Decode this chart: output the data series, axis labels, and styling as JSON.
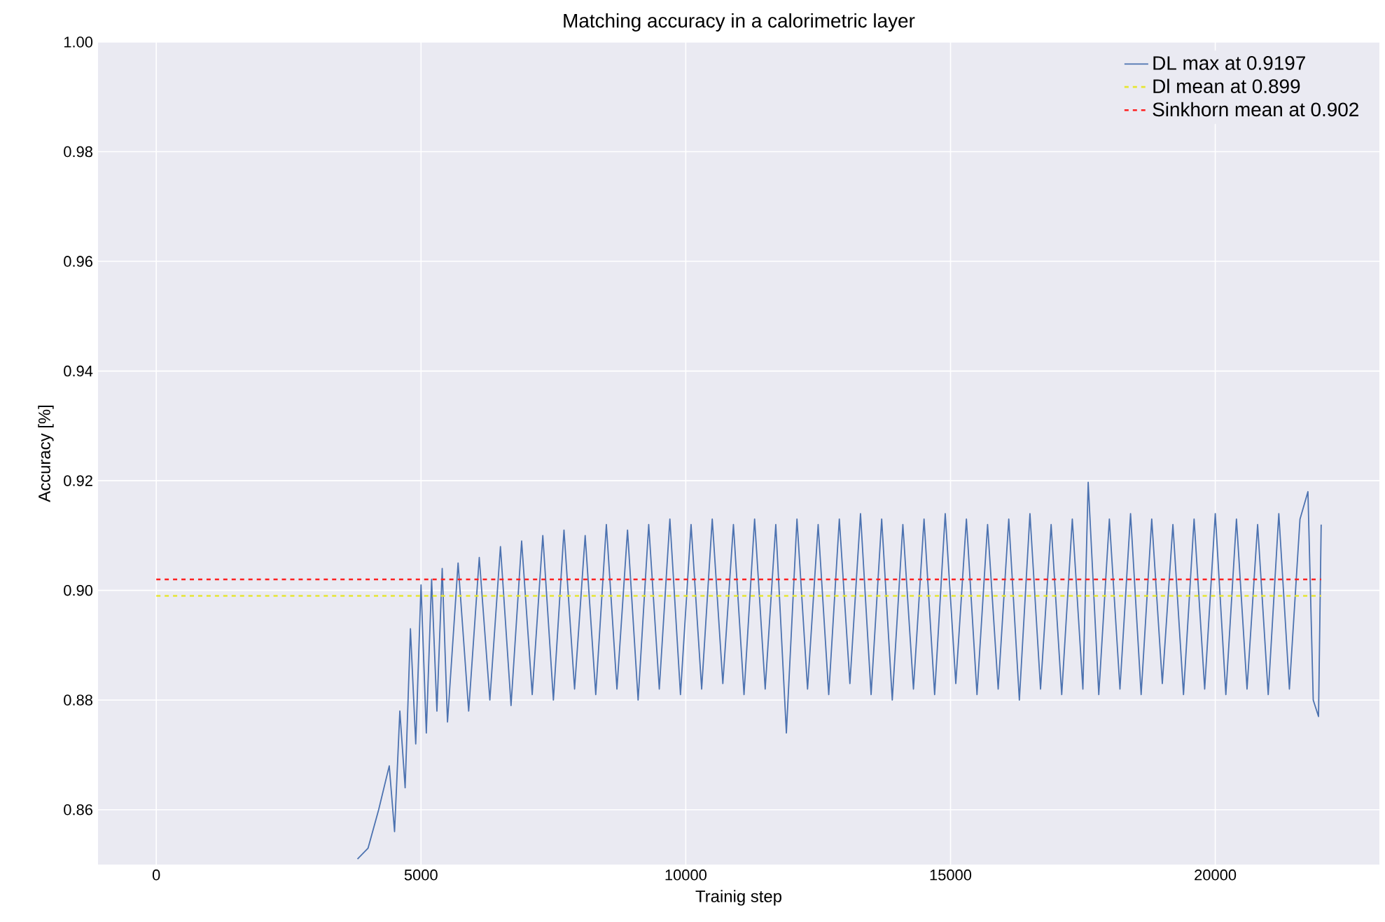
{
  "chart_data": {
    "type": "line",
    "title": "Matching accuracy in a calorimetric layer",
    "xlabel": "Trainig step",
    "ylabel": "Accuracy [%]",
    "xlim": [
      -1100,
      23100
    ],
    "ylim": [
      0.85,
      1.0
    ],
    "xticks": [
      0,
      5000,
      10000,
      15000,
      20000
    ],
    "yticks": [
      0.86,
      0.88,
      {
        "value": 0.9,
        "label": "0.90"
      },
      0.92,
      0.94,
      0.96,
      0.98,
      {
        "value": 1.0,
        "label": "1.00"
      }
    ],
    "grid": true,
    "legend": "top right",
    "series": [
      {
        "name": "DL max at 0.9197",
        "color": "#4c72b0",
        "line_style": "solid",
        "x": [
          3800,
          3900,
          4000,
          4100,
          4200,
          4300,
          4400,
          4500,
          4600,
          4700,
          4800,
          4900,
          5000,
          5100,
          5200,
          5300,
          5400,
          5500,
          5700,
          5900,
          6100,
          6300,
          6500,
          6700,
          6900,
          7100,
          7300,
          7500,
          7700,
          7900,
          8100,
          8300,
          8500,
          8700,
          8900,
          9100,
          9300,
          9500,
          9700,
          9900,
          10100,
          10300,
          10500,
          10700,
          10900,
          11100,
          11300,
          11500,
          11700,
          11900,
          12100,
          12300,
          12500,
          12700,
          12900,
          13100,
          13300,
          13500,
          13700,
          13900,
          14100,
          14300,
          14500,
          14700,
          14900,
          15100,
          15300,
          15500,
          15700,
          15900,
          16100,
          16300,
          16500,
          16700,
          16900,
          17100,
          17300,
          17500,
          17600,
          17800,
          18000,
          18200,
          18400,
          18600,
          18800,
          19000,
          19200,
          19400,
          19600,
          19800,
          20000,
          20200,
          20400,
          20600,
          20800,
          21000,
          21200,
          21400,
          21600,
          21750,
          21850,
          21950,
          22000
        ],
        "values": [
          0.851,
          null,
          0.853,
          null,
          0.86,
          null,
          0.868,
          0.856,
          0.878,
          0.864,
          0.893,
          0.872,
          0.901,
          0.874,
          0.902,
          0.878,
          0.904,
          0.876,
          0.905,
          0.878,
          0.906,
          0.88,
          0.908,
          0.879,
          0.909,
          0.881,
          0.91,
          0.88,
          0.911,
          0.882,
          0.91,
          0.881,
          0.912,
          0.882,
          0.911,
          0.88,
          0.912,
          0.882,
          0.913,
          0.881,
          0.912,
          0.882,
          0.913,
          0.883,
          0.912,
          0.881,
          0.913,
          0.882,
          0.912,
          0.874,
          0.913,
          0.882,
          0.912,
          0.881,
          0.913,
          0.883,
          0.914,
          0.881,
          0.913,
          0.88,
          0.912,
          0.882,
          0.913,
          0.881,
          0.914,
          0.883,
          0.913,
          0.881,
          0.912,
          0.882,
          0.913,
          0.88,
          0.914,
          0.882,
          0.912,
          0.881,
          0.913,
          0.882,
          0.9197,
          0.881,
          0.913,
          0.882,
          0.914,
          0.881,
          0.913,
          0.883,
          0.912,
          0.881,
          0.913,
          0.882,
          0.914,
          0.881,
          0.913,
          0.882,
          0.912,
          0.881,
          0.914,
          0.882,
          0.913,
          0.918,
          0.88,
          0.877,
          0.912
        ]
      },
      {
        "name": "Dl mean at 0.899",
        "color": "#e6e632",
        "line_style": "dashed",
        "x": [
          0,
          22000
        ],
        "values": [
          0.899,
          0.899
        ]
      },
      {
        "name": "Sinkhorn mean at 0.902",
        "color": "#ff2020",
        "line_style": "dashed",
        "x": [
          0,
          22000
        ],
        "values": [
          0.902,
          0.902
        ]
      }
    ]
  }
}
